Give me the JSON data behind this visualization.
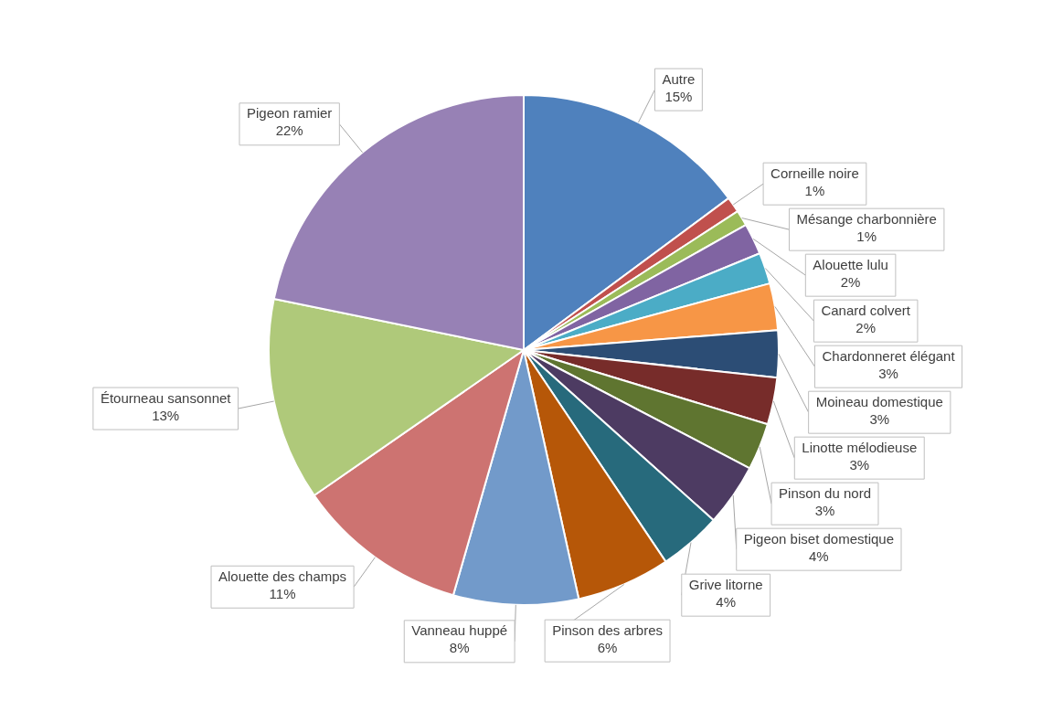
{
  "chart_data": {
    "type": "pie",
    "categories": [
      "Autre",
      "Corneille noire",
      "Mésange charbonnière",
      "Alouette lulu",
      "Canard colvert",
      "Chardonneret élégant",
      "Moineau domestique",
      "Linotte mélodieuse",
      "Pinson du nord",
      "Pigeon biset domestique",
      "Grive litorne",
      "Pinson des arbres",
      "Vanneau huppé",
      "Alouette des champs",
      "Étourneau sansonnet",
      "Pigeon ramier"
    ],
    "values": [
      15,
      1,
      1,
      2,
      2,
      3,
      3,
      3,
      3,
      4,
      4,
      6,
      8,
      11,
      13,
      22
    ],
    "value_labels": [
      "15%",
      "1%",
      "1%",
      "2%",
      "2%",
      "3%",
      "3%",
      "3%",
      "3%",
      "4%",
      "4%",
      "6%",
      "8%",
      "11%",
      "13%",
      "22%"
    ],
    "colors": [
      "#4f81bd",
      "#c0504d",
      "#9bbb59",
      "#8064a2",
      "#4bacc6",
      "#f79646",
      "#2c4d75",
      "#772c2a",
      "#5f7530",
      "#4d3b62",
      "#276a7c",
      "#b65708",
      "#729aca",
      "#cd7371",
      "#afc97a",
      "#9781b5"
    ],
    "legend": false
  }
}
